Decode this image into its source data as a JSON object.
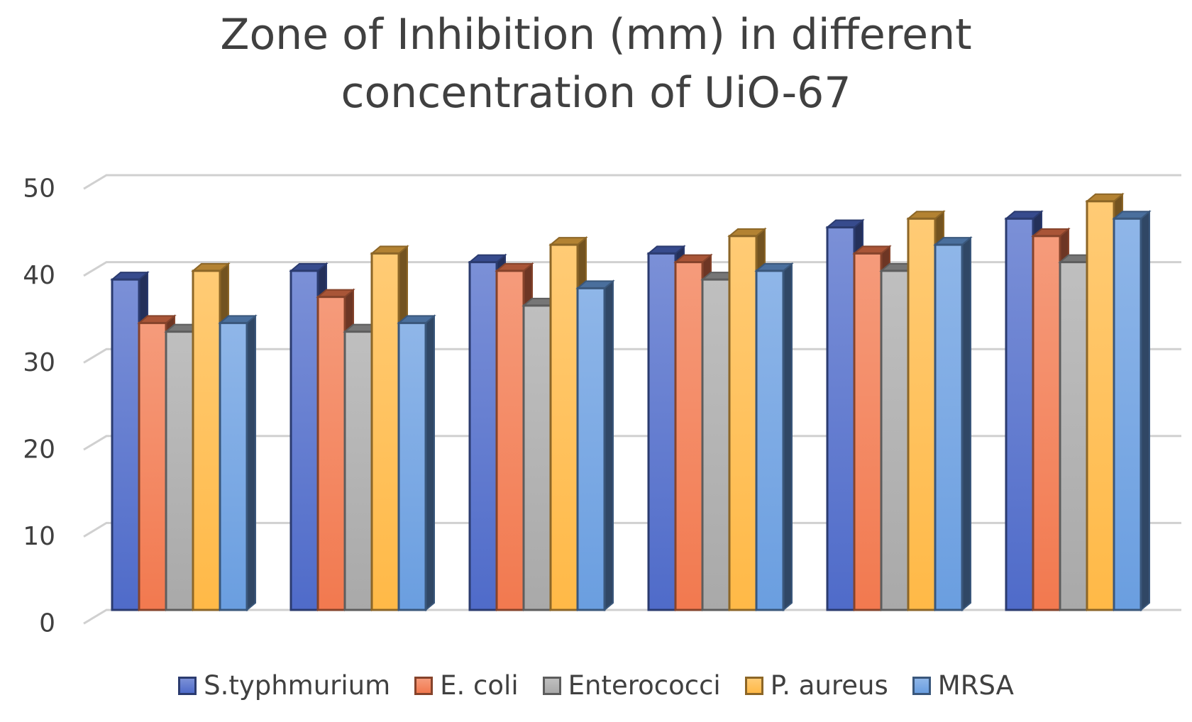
{
  "chart_data": {
    "type": "bar",
    "title": "Zone of Inhibition (mm) in different concentration of UiO-67",
    "title_lines": [
      "Zone of Inhibition (mm) in different",
      "concentration of UiO-67"
    ],
    "xlabel": "",
    "ylabel": "",
    "ylim": [
      0,
      50
    ],
    "yticks": [
      "0",
      "10",
      "20",
      "30",
      "40",
      "50"
    ],
    "categories": [
      "",
      "",
      "",
      "",
      "",
      ""
    ],
    "grid": true,
    "style": "3d-clustered-column",
    "legend_position": "bottom",
    "series": [
      {
        "name": "S.typhmurium",
        "color": "#4f6bc9",
        "values": [
          38,
          39,
          40,
          41,
          44,
          45
        ]
      },
      {
        "name": "E. coli",
        "color": "#f2794f",
        "values": [
          33,
          36,
          39,
          40,
          41,
          43
        ]
      },
      {
        "name": "Enterococci",
        "color": "#a9a9a9",
        "values": [
          32,
          32,
          35,
          38,
          39,
          40
        ]
      },
      {
        "name": "P. aureus",
        "color": "#ffb947",
        "values": [
          39,
          41,
          42,
          43,
          45,
          47
        ]
      },
      {
        "name": "MRSA",
        "color": "#6a9ee0",
        "values": [
          33,
          33,
          37,
          39,
          42,
          45
        ]
      }
    ]
  }
}
